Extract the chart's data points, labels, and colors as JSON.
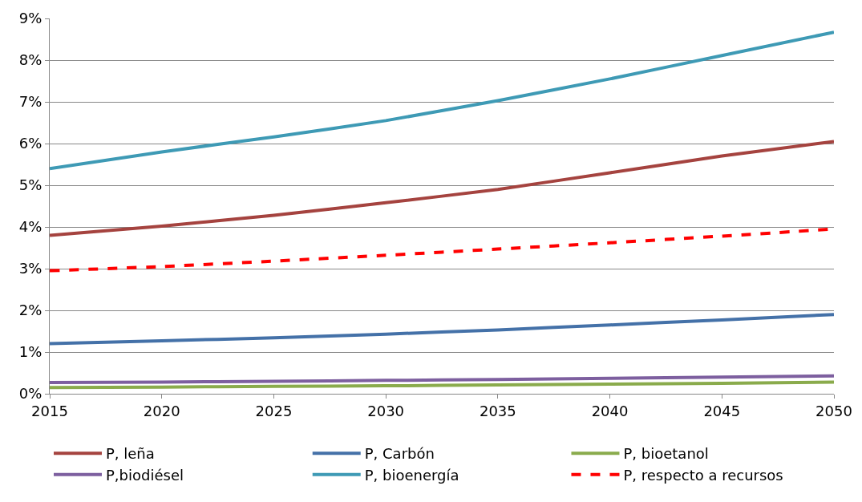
{
  "chart_data": {
    "type": "line",
    "x": [
      2015,
      2020,
      2025,
      2030,
      2035,
      2040,
      2045,
      2050
    ],
    "xlim": [
      2015,
      2050
    ],
    "xticks": [
      2015,
      2020,
      2025,
      2030,
      2035,
      2040,
      2045,
      2050
    ],
    "ylim": [
      0,
      9
    ],
    "yticks": [
      {
        "value": 0,
        "label": "0%"
      },
      {
        "value": 1,
        "label": "1%"
      },
      {
        "value": 2,
        "label": "2%"
      },
      {
        "value": 3,
        "label": "3%"
      },
      {
        "value": 4,
        "label": "4%"
      },
      {
        "value": 5,
        "label": "5%"
      },
      {
        "value": 6,
        "label": "6%"
      },
      {
        "value": 7,
        "label": "7%"
      },
      {
        "value": 8,
        "label": "8%"
      },
      {
        "value": 9,
        "label": "9%"
      }
    ],
    "grid": "y",
    "legend": "bottom",
    "marker": "none",
    "series": [
      {
        "name": "P, leña",
        "color": "#a5433f",
        "values": [
          3.8,
          4.02,
          4.28,
          4.58,
          4.9,
          5.3,
          5.7,
          6.05
        ]
      },
      {
        "name": "P, Carbón",
        "color": "#4471a8",
        "values": [
          1.2,
          1.27,
          1.34,
          1.43,
          1.53,
          1.65,
          1.77,
          1.9
        ]
      },
      {
        "name": "P, bioetanol",
        "color": "#8aab4c",
        "values": [
          0.15,
          0.16,
          0.18,
          0.19,
          0.21,
          0.23,
          0.25,
          0.28
        ]
      },
      {
        "name": "P,biodiésel",
        "color": "#7d5f9f",
        "values": [
          0.27,
          0.28,
          0.3,
          0.32,
          0.34,
          0.37,
          0.4,
          0.43
        ]
      },
      {
        "name": "P, bioenergía",
        "color": "#3e9ab5",
        "values": [
          5.4,
          5.8,
          6.16,
          6.55,
          7.03,
          7.55,
          8.11,
          8.67
        ]
      },
      {
        "name": "P, respecto a recursos",
        "color": "#ff0000",
        "line_style": "dashed",
        "values": [
          2.95,
          3.05,
          3.18,
          3.32,
          3.47,
          3.62,
          3.78,
          3.95
        ]
      }
    ]
  }
}
